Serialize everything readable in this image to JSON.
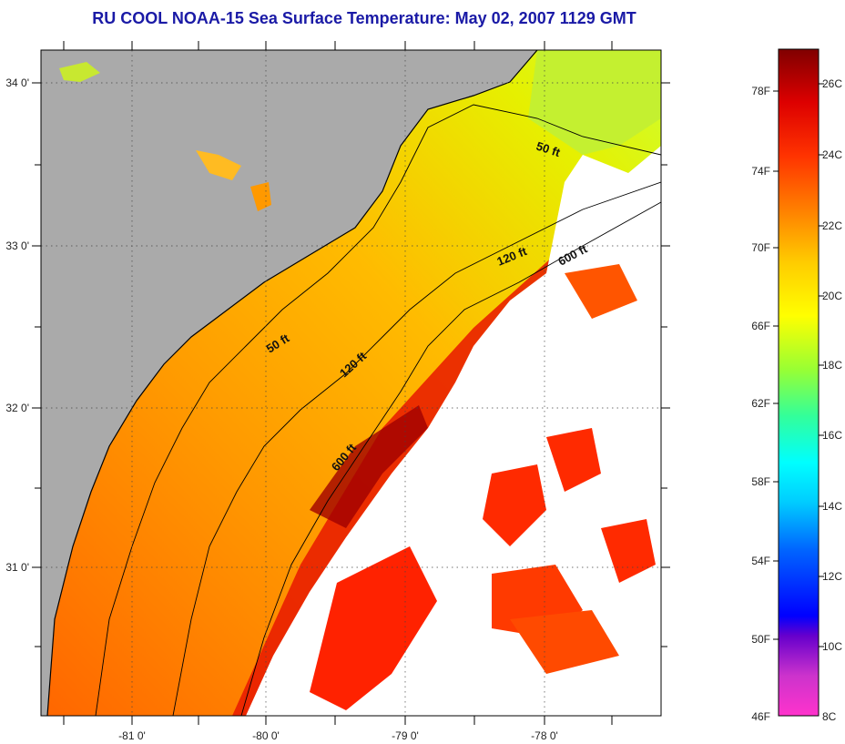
{
  "title": "RU COOL  NOAA-15  Sea Surface Temperature:  May 02, 2007 1129 GMT",
  "map": {
    "lat_labels": [
      "34 0'",
      "33 0'",
      "32 0'",
      "31 0'"
    ],
    "lon_labels": [
      "-81 0'",
      "-80 0'",
      "-79 0'",
      "-78 0'"
    ],
    "depth_contours": [
      "50 ft",
      "50 ft",
      "120 ft",
      "120 ft",
      "600 ft",
      "600 ft"
    ],
    "colors": {
      "land": "#aaaaaa",
      "cloud": "#ffffff",
      "coastline": "#000000"
    }
  },
  "colorbar": {
    "fahrenheit_labels": [
      "78F",
      "74F",
      "70F",
      "66F",
      "62F",
      "58F",
      "54F",
      "50F",
      "46F"
    ],
    "celsius_labels": [
      "26C",
      "24C",
      "22C",
      "20C",
      "18C",
      "16C",
      "14C",
      "12C",
      "10C",
      "8C"
    ],
    "colors": [
      "#ff33cc",
      "#6600cc",
      "#0000ff",
      "#0088ff",
      "#00ffff",
      "#33ff99",
      "#99ff33",
      "#ffff00",
      "#ffaa00",
      "#ff5500",
      "#ff0000",
      "#cc0000",
      "#800000"
    ]
  }
}
